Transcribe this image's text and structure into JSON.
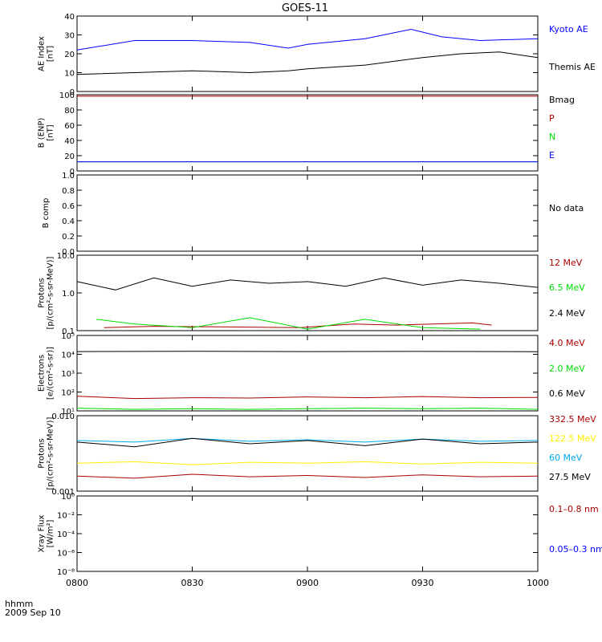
{
  "title": "GOES-11",
  "time_label": "hhmm",
  "date_label": "2009 Sep 10",
  "x_ticks": [
    "0800",
    "0830",
    "0900",
    "0930",
    "1000"
  ],
  "colors": {
    "black": "#000000",
    "blue": "#0000ff",
    "red": "#aa0000",
    "green": "#00dd00",
    "dark_green": "#006600",
    "cyan": "#00aaee",
    "yellow": "#ffee00"
  },
  "chart_data": [
    {
      "type": "line",
      "ylabel_lines": [
        "AE Index",
        "[nT]"
      ],
      "ylim": [
        0,
        40
      ],
      "y_ticks": [
        "0",
        "10",
        "20",
        "30",
        "40"
      ],
      "x_range": [
        "0800",
        "1000"
      ],
      "series": [
        {
          "name": "Kyoto AE",
          "color": "#0000ff",
          "x": [
            "0800",
            "0815",
            "0830",
            "0845",
            "0855",
            "0900",
            "0915",
            "0927",
            "0935",
            "0945",
            "1000"
          ],
          "values": [
            22,
            27,
            27,
            26,
            23,
            25,
            28,
            33,
            29,
            27,
            28
          ]
        },
        {
          "name": "Themis AE",
          "color": "#000000",
          "x": [
            "0800",
            "0815",
            "0830",
            "0845",
            "0855",
            "0900",
            "0915",
            "0930",
            "0940",
            "0950",
            "1000"
          ],
          "values": [
            9,
            10,
            11,
            10,
            11,
            12,
            14,
            18,
            20,
            21,
            18
          ]
        }
      ]
    },
    {
      "type": "line",
      "ylabel_lines": [
        "B (ENP)",
        "[nT]"
      ],
      "ylim": [
        0,
        100
      ],
      "y_ticks": [
        "0",
        "20",
        "40",
        "60",
        "80",
        "100"
      ],
      "x_range": [
        "0800",
        "1000"
      ],
      "series": [
        {
          "name": "Bmag",
          "color": "#000000",
          "x": [
            "0800",
            "1000"
          ],
          "values": [
            100,
            100
          ]
        },
        {
          "name": "P",
          "color": "#aa0000",
          "x": [
            "0800",
            "1000"
          ],
          "values": [
            98,
            98
          ]
        },
        {
          "name": "N",
          "color": "#00dd00",
          "x": [
            "0800",
            "1000"
          ],
          "values": [
            12,
            12
          ]
        },
        {
          "name": "E",
          "color": "#0000ff",
          "x": [
            "0800",
            "1000"
          ],
          "values": [
            12,
            12
          ]
        }
      ]
    },
    {
      "type": "line",
      "ylabel_lines": [
        "B comp"
      ],
      "ylim": [
        0,
        1
      ],
      "y_ticks": [
        "0.0",
        "0.2",
        "0.4",
        "0.6",
        "0.8",
        "1.0"
      ],
      "x_range": [
        "0800",
        "1000"
      ],
      "series": [],
      "legend_text": [
        "No data"
      ]
    },
    {
      "type": "line",
      "ylabel_lines": [
        "Protons",
        "[p/(cm²-s-sr-MeV)]"
      ],
      "ylim": [
        0.1,
        10
      ],
      "log": true,
      "y_ticks": [
        "0.1",
        "1.0",
        "10.0"
      ],
      "x_range": [
        "0800",
        "1000"
      ],
      "series": [
        {
          "name": "12 MeV",
          "color": "#aa0000",
          "x": [
            "0807",
            "0820",
            "0858",
            "0912",
            "0923",
            "0943",
            "0948"
          ],
          "values": [
            0.12,
            0.13,
            0.12,
            0.15,
            0.14,
            0.16,
            0.14
          ]
        },
        {
          "name": "6.5 MeV",
          "color": "#00dd00",
          "x": [
            "0805",
            "0815",
            "0830",
            "0845",
            "0900",
            "0915",
            "0930",
            "0945"
          ],
          "values": [
            0.2,
            0.15,
            0.12,
            0.22,
            0.11,
            0.2,
            0.12,
            0.11
          ]
        },
        {
          "name": "2.4 MeV",
          "color": "#000000",
          "x": [
            "0800",
            "0810",
            "0820",
            "0830",
            "0840",
            "0850",
            "0900",
            "0910",
            "0920",
            "0930",
            "0940",
            "0950",
            "1000"
          ],
          "values": [
            2.0,
            1.2,
            2.5,
            1.5,
            2.2,
            1.8,
            2.0,
            1.5,
            2.5,
            1.6,
            2.2,
            1.8,
            1.4
          ]
        }
      ]
    },
    {
      "type": "line",
      "ylabel_lines": [
        "Electrons",
        "[e/(cm²-s-sr)]"
      ],
      "ylim": [
        10,
        100000
      ],
      "log": true,
      "y_ticks": [
        "10¹",
        "10²",
        "10³",
        "10⁴",
        "10⁵"
      ],
      "x_range": [
        "0800",
        "1000"
      ],
      "series": [
        {
          "name": "4.0 MeV",
          "color": "#aa0000",
          "x": [
            "0800",
            "0815",
            "0830",
            "0845",
            "0900",
            "0915",
            "0930",
            "0945",
            "1000"
          ],
          "values": [
            60,
            45,
            50,
            48,
            55,
            50,
            58,
            50,
            52
          ]
        },
        {
          "name": "2.0 MeV",
          "color": "#00dd00",
          "x": [
            "0800",
            "0815",
            "0830",
            "0845",
            "0900",
            "0915",
            "0930",
            "0945",
            "1000"
          ],
          "values": [
            14,
            12,
            13,
            12,
            13,
            14,
            13,
            14,
            12
          ]
        },
        {
          "name": "0.6 MeV",
          "color": "#000000",
          "x": [
            "0800",
            "0830",
            "0900",
            "0930",
            "1000"
          ],
          "values": [
            14000,
            14500,
            14000,
            14200,
            13800
          ]
        }
      ]
    },
    {
      "type": "line",
      "ylabel_lines": [
        "Protons",
        "[p/(cm²-s-sr-MeV)]"
      ],
      "ylim": [
        0.001,
        0.1
      ],
      "log": true,
      "y_ticks": [
        "0.001",
        "0.010"
      ],
      "x_range": [
        "0800",
        "1000"
      ],
      "series": [
        {
          "name": "332.5 MeV",
          "color": "#aa0000",
          "x": [
            "0800",
            "0815",
            "0830",
            "0845",
            "0900",
            "0915",
            "0930",
            "0945",
            "1000"
          ],
          "values": [
            0.0025,
            0.0022,
            0.0028,
            0.0024,
            0.0026,
            0.0023,
            0.0027,
            0.0024,
            0.0025
          ]
        },
        {
          "name": "122.5 MeV",
          "color": "#ffee00",
          "x": [
            "0800",
            "0815",
            "0830",
            "0845",
            "0900",
            "0915",
            "0930",
            "0945",
            "1000"
          ],
          "values": [
            0.0055,
            0.006,
            0.005,
            0.0058,
            0.0055,
            0.006,
            0.0052,
            0.0058,
            0.0055
          ]
        },
        {
          "name": "60 MeV",
          "color": "#00aaee",
          "x": [
            "0800",
            "0815",
            "0830",
            "0845",
            "0900",
            "0915",
            "0930",
            "0945",
            "1000"
          ],
          "values": [
            0.022,
            0.02,
            0.025,
            0.021,
            0.023,
            0.02,
            0.024,
            0.021,
            0.022
          ]
        },
        {
          "name": "27.5 MeV",
          "color": "#000000",
          "x": [
            "0800",
            "0815",
            "0830",
            "0845",
            "0900",
            "0915",
            "0930",
            "0945",
            "1000"
          ],
          "values": [
            0.02,
            0.015,
            0.025,
            0.018,
            0.022,
            0.016,
            0.024,
            0.018,
            0.02
          ]
        }
      ]
    },
    {
      "type": "line",
      "ylabel_lines": [
        "Xray Flux",
        "[W/m²]"
      ],
      "ylim": [
        1e-09,
        1
      ],
      "log": true,
      "y_ticks": [
        "10⁻⁸",
        "10⁻⁶",
        "10⁻⁴",
        "10⁻²",
        "10⁰"
      ],
      "x_range": [
        "0800",
        "1000"
      ],
      "series": [],
      "legend_text": [
        "0.1–0.8 nm",
        "0.05–0.3 nm"
      ]
    }
  ]
}
